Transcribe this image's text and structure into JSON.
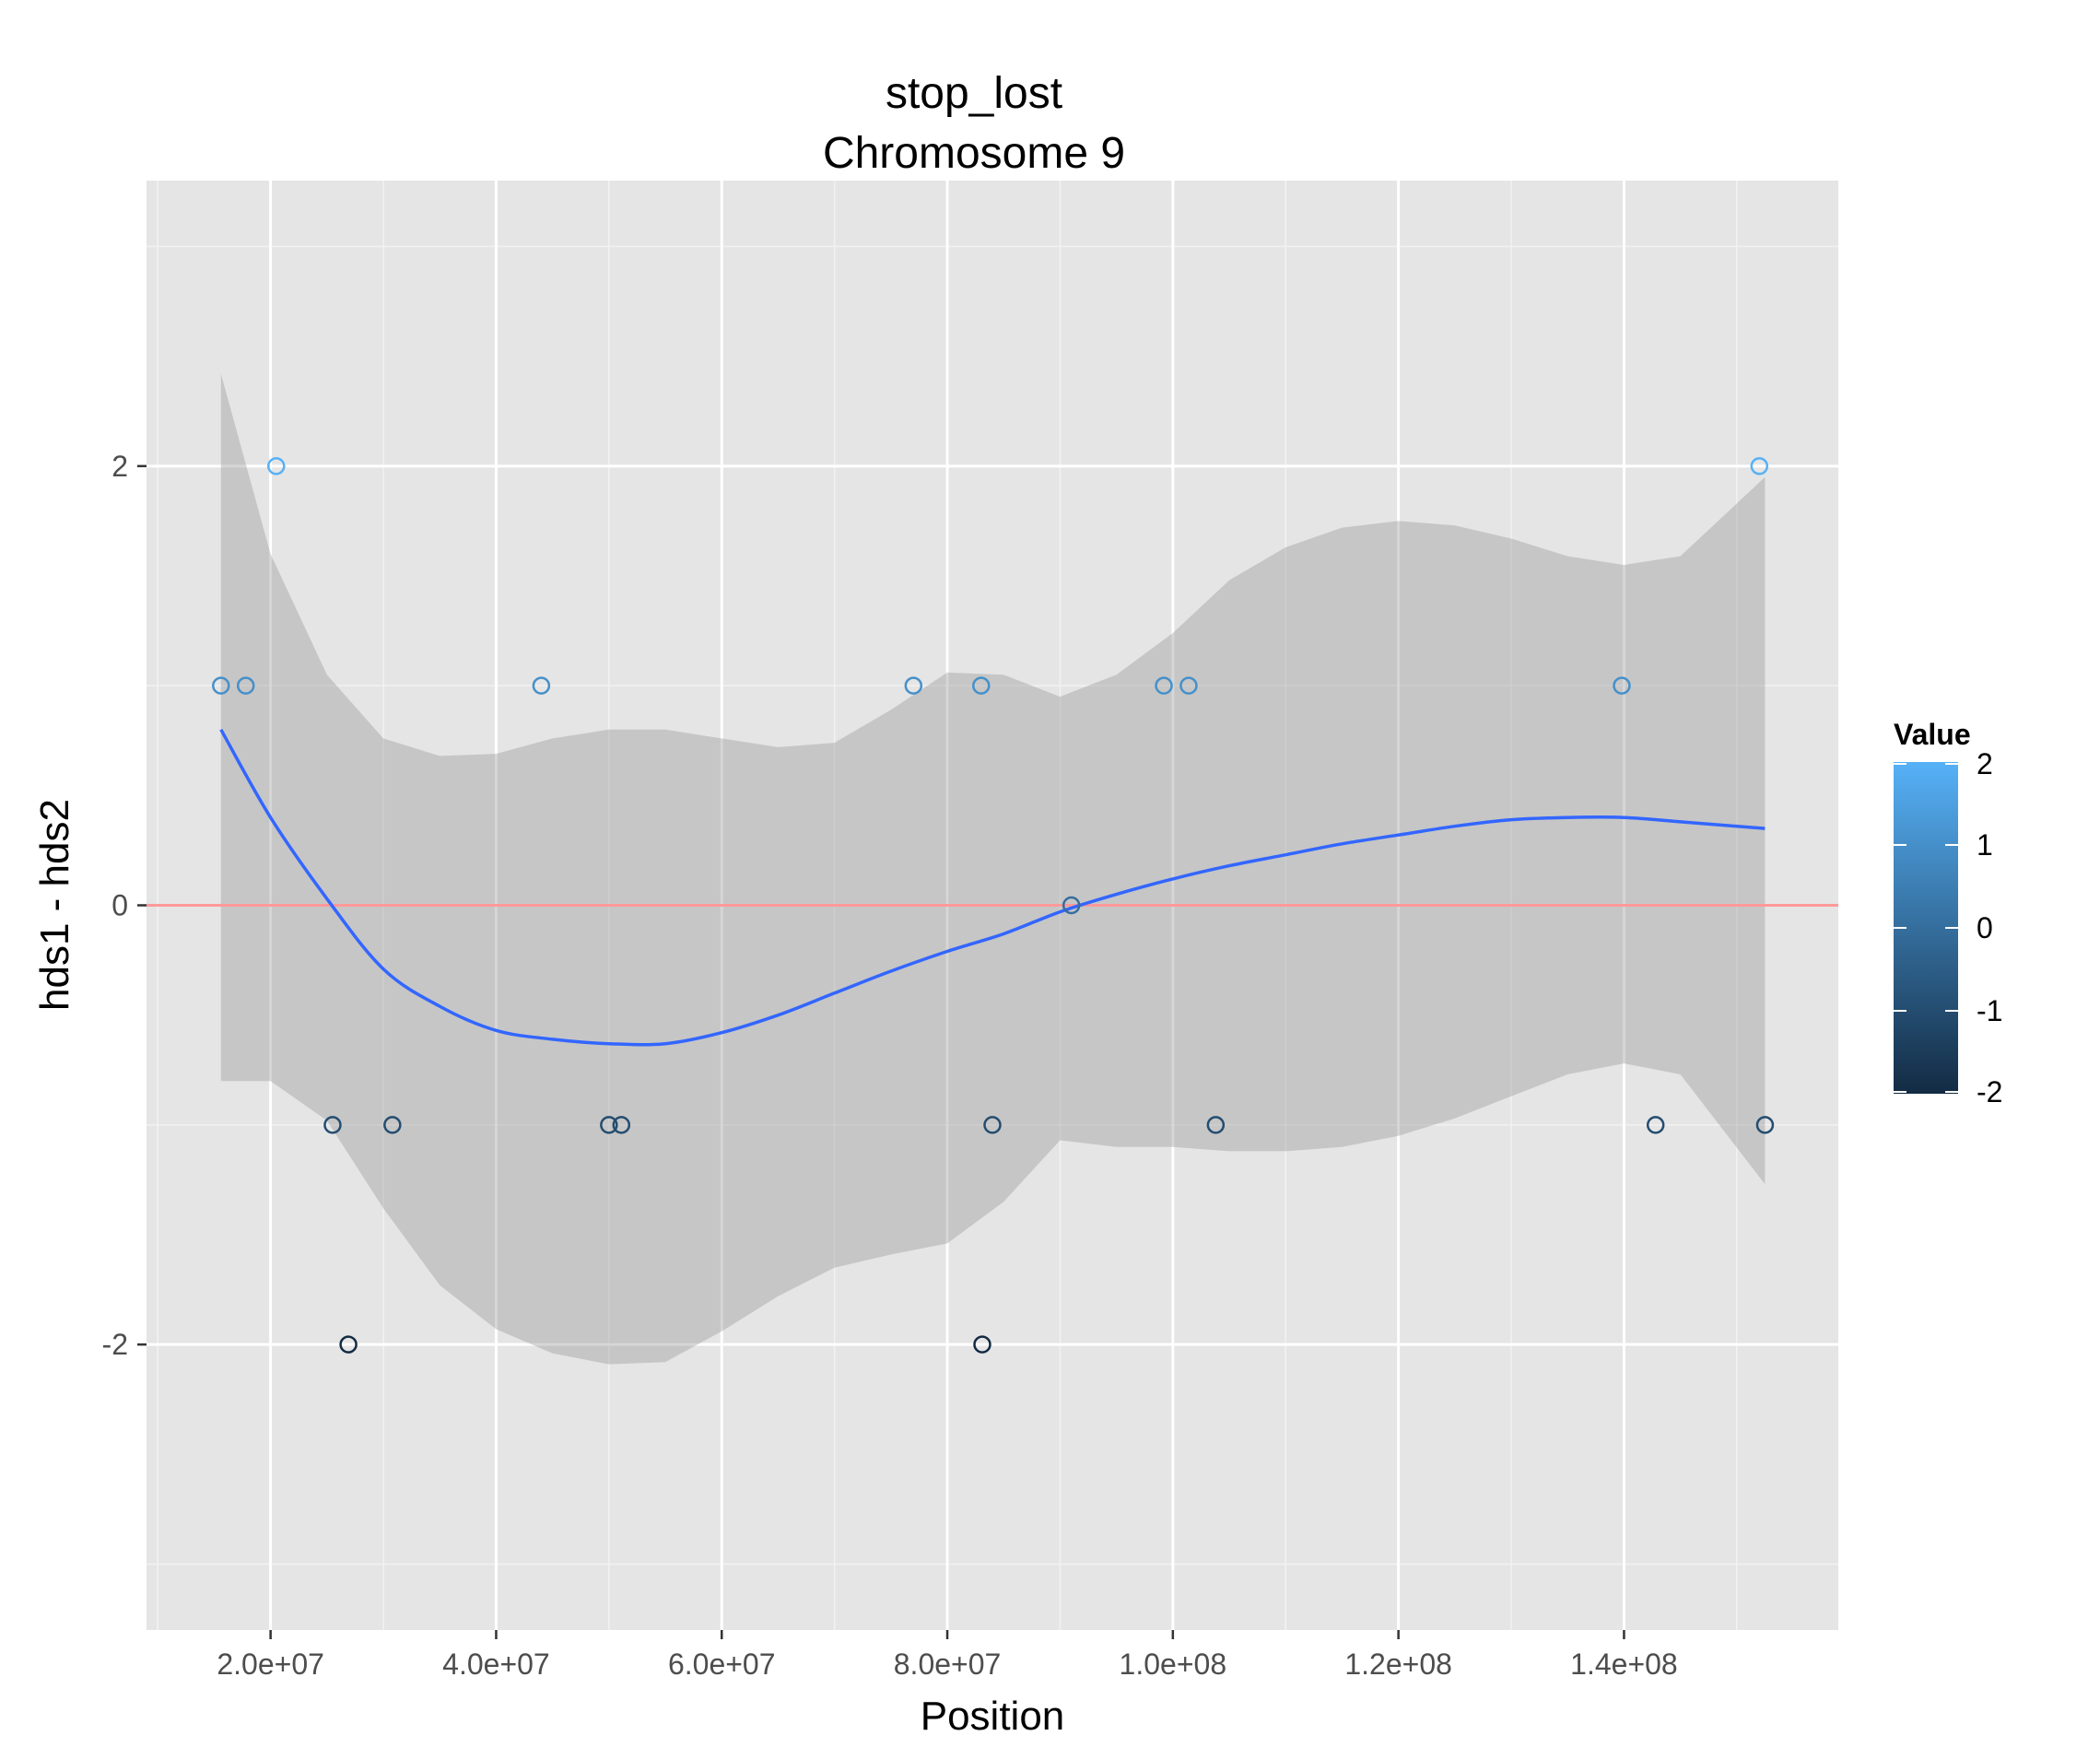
{
  "chart_data": {
    "type": "scatter",
    "title": "stop_lost",
    "subtitle": "Chromosome 9",
    "xlabel": "Position",
    "ylabel": "hds1 - hds2",
    "xlim": [
      9000000,
      159000000
    ],
    "ylim": [
      -3.3,
      3.3
    ],
    "x_ticks": [
      20000000,
      40000000,
      60000000,
      80000000,
      100000000,
      120000000,
      140000000
    ],
    "x_tick_labels": [
      "2.0e+07",
      "4.0e+07",
      "6.0e+07",
      "8.0e+07",
      "1.0e+08",
      "1.2e+08",
      "1.4e+08"
    ],
    "y_ticks": [
      -2,
      0,
      2
    ],
    "y_tick_labels": [
      "-2",
      "0",
      "2"
    ],
    "grid": true,
    "reference_line": {
      "y": 0,
      "color": "#ff9999"
    },
    "points": [
      {
        "x": 15600000,
        "y": 1
      },
      {
        "x": 17800000,
        "y": 1
      },
      {
        "x": 20500000,
        "y": 2
      },
      {
        "x": 25500000,
        "y": -1
      },
      {
        "x": 26900000,
        "y": -2
      },
      {
        "x": 30800000,
        "y": -1
      },
      {
        "x": 44000000,
        "y": 1
      },
      {
        "x": 50000000,
        "y": -1
      },
      {
        "x": 51100000,
        "y": -1
      },
      {
        "x": 77000000,
        "y": 1
      },
      {
        "x": 83000000,
        "y": 1
      },
      {
        "x": 83100000,
        "y": -2
      },
      {
        "x": 84000000,
        "y": -1
      },
      {
        "x": 91000000,
        "y": 0
      },
      {
        "x": 99200000,
        "y": 1
      },
      {
        "x": 101400000,
        "y": 1
      },
      {
        "x": 103800000,
        "y": -1
      },
      {
        "x": 139800000,
        "y": 1
      },
      {
        "x": 142800000,
        "y": -1
      },
      {
        "x": 152000000,
        "y": 2
      },
      {
        "x": 152500000,
        "y": -1
      }
    ],
    "smooth": {
      "color": "#3366ff",
      "x": [
        15600000,
        20000000,
        25000000,
        30000000,
        35000000,
        40000000,
        45000000,
        50000000,
        55000000,
        60000000,
        65000000,
        70000000,
        75000000,
        80000000,
        85000000,
        90000000,
        95000000,
        100000000,
        105000000,
        110000000,
        115000000,
        120000000,
        125000000,
        130000000,
        135000000,
        140000000,
        145000000,
        152500000
      ],
      "y": [
        0.8,
        0.4,
        0.03,
        -0.29,
        -0.46,
        -0.57,
        -0.61,
        -0.63,
        -0.63,
        -0.58,
        -0.5,
        -0.4,
        -0.3,
        -0.21,
        -0.13,
        -0.03,
        0.05,
        0.12,
        0.18,
        0.23,
        0.28,
        0.32,
        0.36,
        0.39,
        0.4,
        0.4,
        0.38,
        0.35
      ],
      "lower": [
        -0.8,
        -0.8,
        -0.98,
        -1.38,
        -1.73,
        -1.93,
        -2.04,
        -2.09,
        -2.08,
        -1.94,
        -1.78,
        -1.65,
        -1.59,
        -1.54,
        -1.35,
        -1.07,
        -1.1,
        -1.1,
        -1.12,
        -1.12,
        -1.1,
        -1.05,
        -0.97,
        -0.87,
        -0.77,
        -0.72,
        -0.77,
        -1.27
      ],
      "upper": [
        2.42,
        1.6,
        1.05,
        0.76,
        0.68,
        0.69,
        0.76,
        0.8,
        0.8,
        0.76,
        0.72,
        0.74,
        0.89,
        1.06,
        1.05,
        0.95,
        1.05,
        1.24,
        1.48,
        1.63,
        1.72,
        1.75,
        1.73,
        1.67,
        1.59,
        1.55,
        1.59,
        1.95
      ]
    },
    "color_scale": {
      "title": "Value",
      "domain": [
        -2,
        2
      ],
      "low_color": "#132b43",
      "high_color": "#56b1f7",
      "ticks": [
        2,
        1,
        0,
        -1,
        -2
      ],
      "tick_labels": [
        "2",
        "1",
        "0",
        "-1",
        "-2"
      ],
      "legend_position": "right"
    }
  }
}
